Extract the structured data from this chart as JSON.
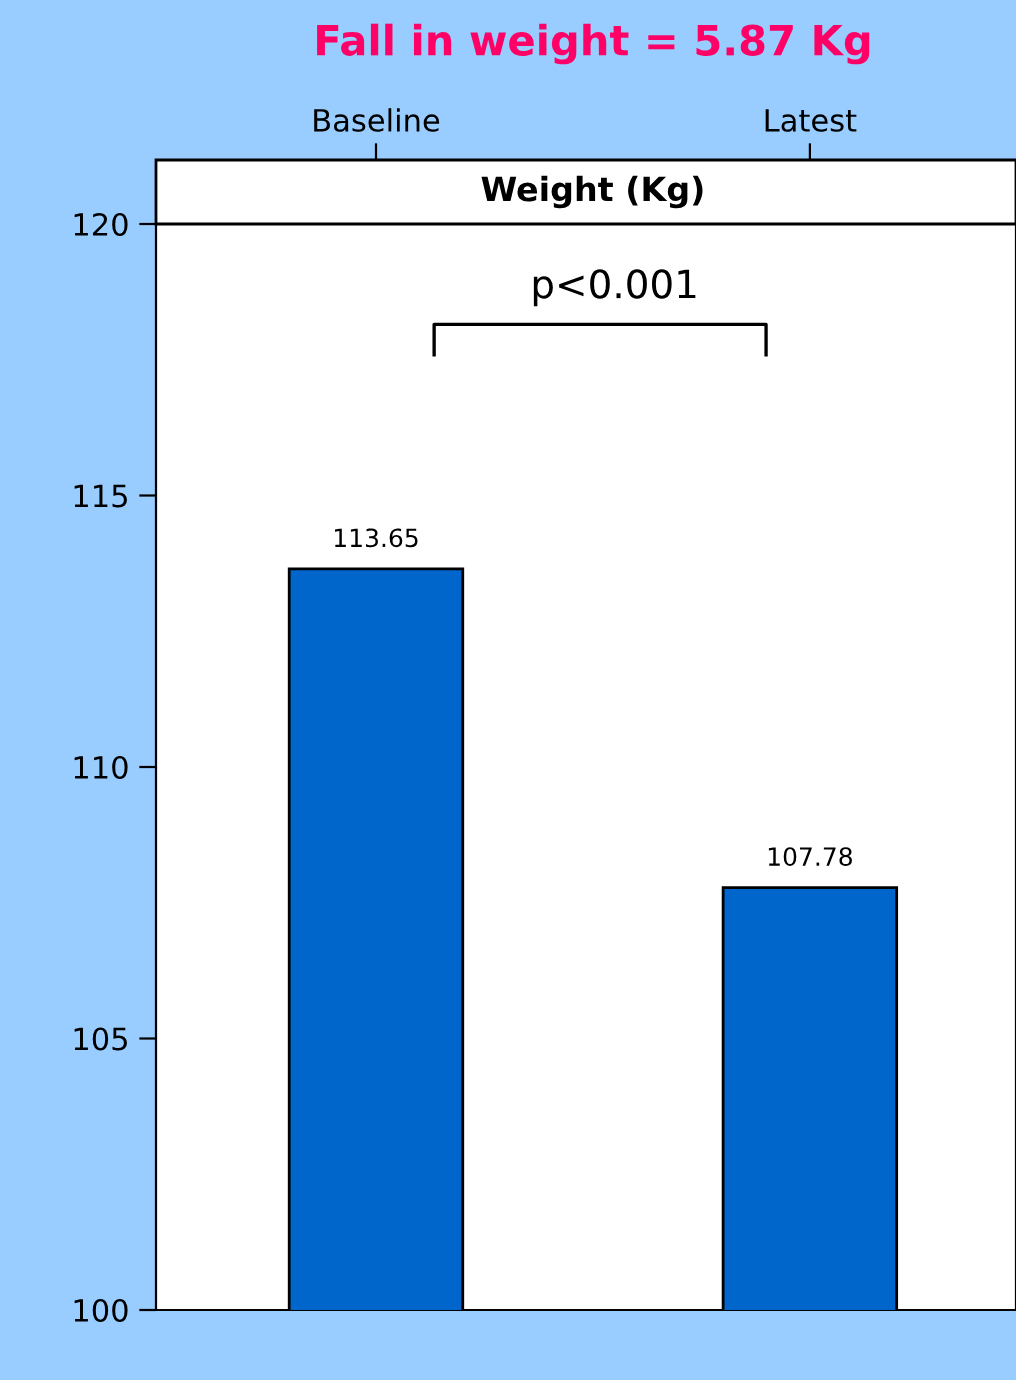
{
  "chart_data": {
    "type": "bar",
    "title": "Fall in weight = 5.87 Kg",
    "subtitle": "Weight (Kg)",
    "categories": [
      "Baseline",
      "Latest"
    ],
    "values": [
      113.65,
      107.78
    ],
    "color": "#0066cc",
    "ylim": [
      100,
      120
    ],
    "yticks": [
      100,
      105,
      110,
      115,
      120
    ],
    "data_labels": true,
    "grid": false,
    "annotations": [
      "p<0.001"
    ]
  }
}
